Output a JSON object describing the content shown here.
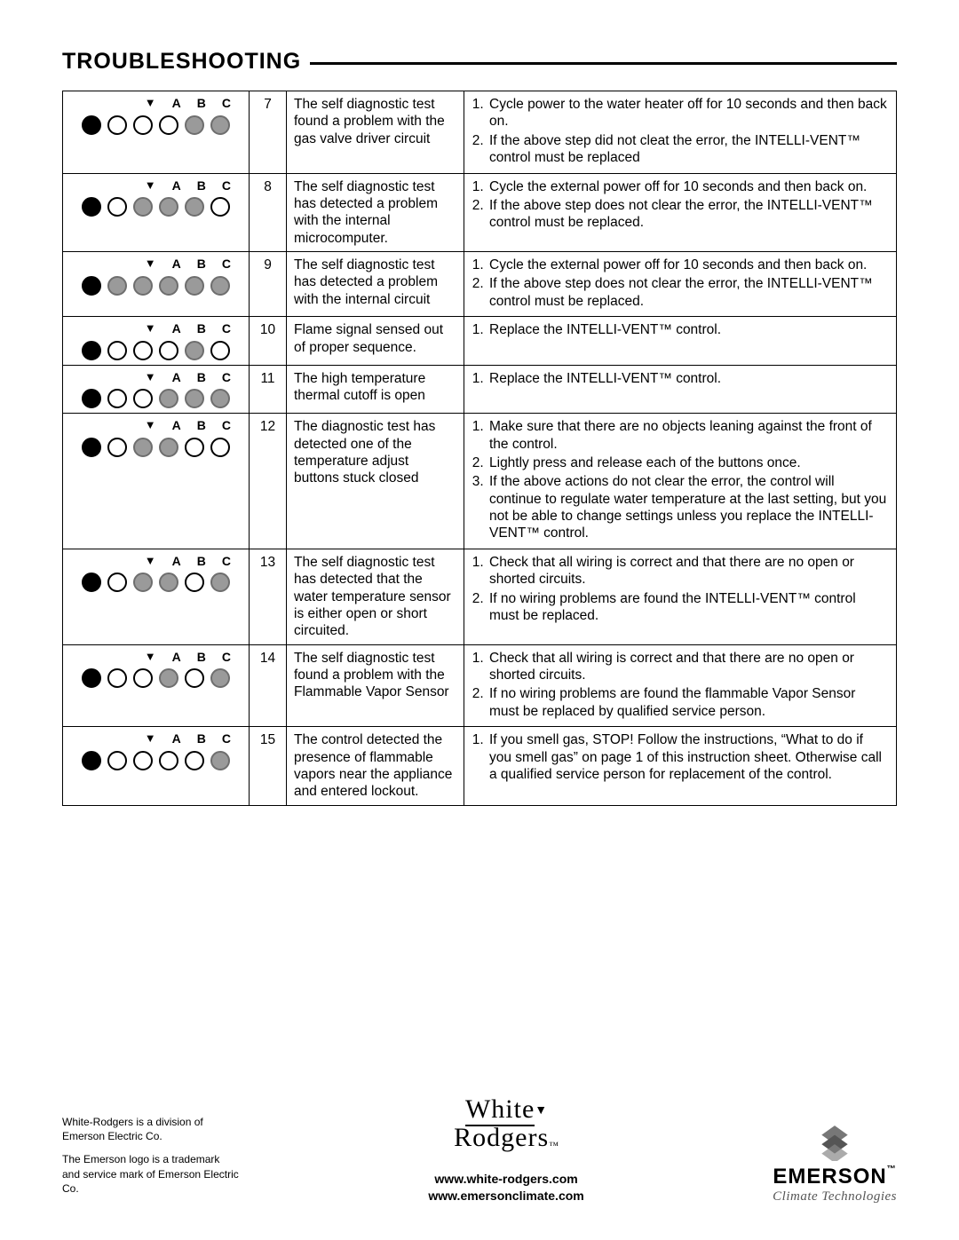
{
  "title": "TROUBLESHOOTING",
  "led_header": {
    "triangle": "▼",
    "a": "A",
    "b": "B",
    "c": "C"
  },
  "led_states": {
    "solid": "solid",
    "gray": "gray",
    "open": "open"
  },
  "rows": [
    {
      "code": "7",
      "leds": [
        "solid",
        "open",
        "open",
        "open",
        "gray",
        "gray"
      ],
      "diag": "The self diagnostic test found a problem with the gas valve driver circuit",
      "actions": [
        "Cycle power to the water heater off for 10 seconds and then back on.",
        "If the above step did not cleat the error, the INTELLI-VENT™ control must be replaced"
      ]
    },
    {
      "code": "8",
      "leds": [
        "solid",
        "open",
        "gray",
        "gray",
        "gray",
        "open"
      ],
      "diag": "The self diagnostic test has detected a problem with the internal microcomputer.",
      "actions": [
        "Cycle the external power off for 10 seconds and then back on.",
        "If the above step does not clear the error, the INTELLI-VENT™ control must be replaced."
      ]
    },
    {
      "code": "9",
      "leds": [
        "solid",
        "gray",
        "gray",
        "gray",
        "gray",
        "gray"
      ],
      "diag": "The self diagnostic test has detected a problem with the internal circuit",
      "actions": [
        "Cycle the external power off for 10 seconds and then back on.",
        "If the above step does not clear the error, the INTELLI-VENT™ control must be replaced."
      ]
    },
    {
      "code": "10",
      "leds": [
        "solid",
        "open",
        "open",
        "open",
        "gray",
        "open"
      ],
      "diag": "Flame signal sensed out of proper sequence.",
      "actions": [
        "Replace the INTELLI-VENT™ control."
      ]
    },
    {
      "code": "11",
      "leds": [
        "solid",
        "open",
        "open",
        "gray",
        "gray",
        "gray"
      ],
      "diag": "The high temperature thermal cutoff is open",
      "actions": [
        "Replace the INTELLI-VENT™ control."
      ]
    },
    {
      "code": "12",
      "leds": [
        "solid",
        "open",
        "gray",
        "gray",
        "open",
        "open"
      ],
      "diag": "The diagnostic test has detected one of the temperature adjust buttons stuck closed",
      "actions": [
        "Make sure that there are no objects leaning against the front of the control.",
        "Lightly press and release each of the buttons once.",
        "If the above actions do not clear the error, the control will continue to regulate water temperature at the last setting, but you not be able to change settings unless you replace the INTELLI-VENT™ control."
      ]
    },
    {
      "code": "13",
      "leds": [
        "solid",
        "open",
        "gray",
        "gray",
        "open",
        "gray"
      ],
      "diag": "The self diagnostic test has detected that the water temperature sensor is either open or short circuited.",
      "actions": [
        "Check that all wiring is correct and that there are no open or shorted circuits.",
        "If no wiring problems are found the INTELLI-VENT™ control must be replaced."
      ]
    },
    {
      "code": "14",
      "leds": [
        "solid",
        "open",
        "open",
        "gray",
        "open",
        "gray"
      ],
      "diag": "The self diagnostic test found a problem with the Flammable Vapor Sensor",
      "actions": [
        "Check that all wiring is correct and that there are no open or shorted circuits.",
        "If no wiring problems are found the flammable Vapor Sensor must be replaced by qualified service person."
      ]
    },
    {
      "code": "15",
      "leds": [
        "solid",
        "open",
        "open",
        "open",
        "open",
        "gray"
      ],
      "diag": "The control detected the presence of flammable vapors near the appliance and entered lockout.",
      "actions": [
        "If you smell gas, STOP! Follow the instructions, “What to do if you smell gas” on page 1 of this instruction sheet. Otherwise call a qualified service person for replacement of the control."
      ]
    }
  ],
  "footer": {
    "disclaimer1": "White-Rodgers is a division of Emerson Electric Co.",
    "disclaimer2": "The Emerson logo is a trademark and service mark of Emerson Electric Co.",
    "logo_line1": "White",
    "logo_line2": "Rodgers",
    "url1": "www.white-rodgers.com",
    "url2": "www.emersonclimate.com",
    "emerson_name": "EMERSON",
    "emerson_sub": "Climate Technologies"
  }
}
